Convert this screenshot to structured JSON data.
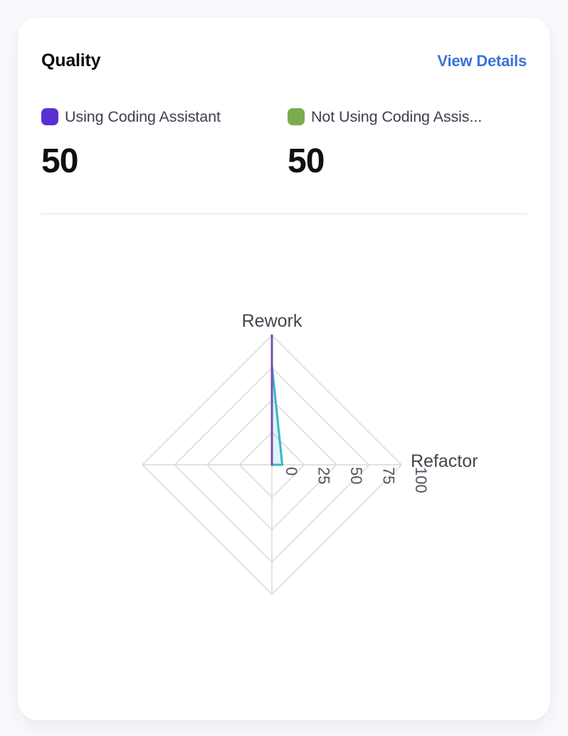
{
  "page": {
    "background": "#f8f9fc"
  },
  "card": {
    "title": "Quality",
    "view_details_label": "View Details",
    "accent_blue": "#3a73d8"
  },
  "stats": [
    {
      "label": "Using Coding Assistant",
      "value": "50",
      "swatch_color": "#5a30d2"
    },
    {
      "label": "Not Using Coding Assis...",
      "value": "50",
      "swatch_color": "#7cab4f"
    }
  ],
  "chart_data": {
    "type": "radar",
    "axes": [
      {
        "name": "Rework",
        "max": 100
      },
      {
        "name": "Refactor",
        "max": 100
      },
      {
        "name": "",
        "max": 100
      },
      {
        "name": "",
        "max": 100
      }
    ],
    "max": 100,
    "grid_levels": 4,
    "grid_color": "#d7d9dd",
    "tick_values": [
      0,
      25,
      50,
      75,
      100
    ],
    "tick_labels": [
      "0",
      "25",
      "50",
      "75",
      "100"
    ],
    "tick_label_color": "#50555d",
    "axis_name_color": "#42474f",
    "legend_position": "none",
    "series": [
      {
        "name": "Using Coding Assistant",
        "color": "#7b4fad",
        "fill_opacity": 0.0,
        "values": [
          100,
          0,
          0,
          0
        ]
      },
      {
        "name": "Not Using Coding Assistant",
        "color": "#3ab5c6",
        "fill_opacity": 0.16,
        "values": [
          77,
          8,
          0,
          0
        ]
      }
    ]
  }
}
